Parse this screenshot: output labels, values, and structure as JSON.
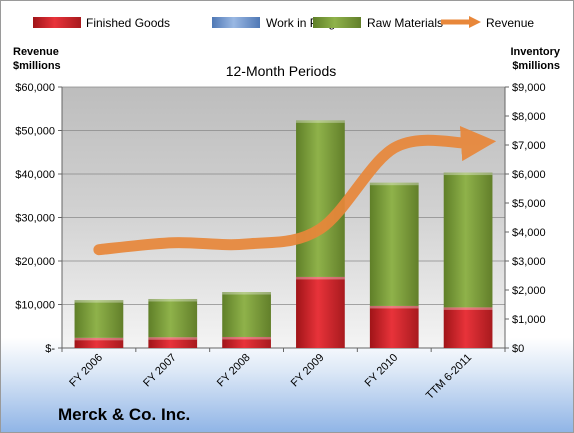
{
  "chart_data": {
    "type": "bar",
    "stacked": true,
    "subtitle": "12-Month Periods",
    "company": "Merck & Co. Inc.",
    "categories": [
      "FY 2006",
      "FY 2007",
      "FY 2008",
      "FY 2009",
      "FY 2010",
      "TTM 6-2011"
    ],
    "left_axis": {
      "title_line1": "Revenue",
      "title_line2": "$millions",
      "ylim": [
        0,
        60000
      ],
      "tick_labels": [
        "$-",
        "$10,000",
        "$20,000",
        "$30,000",
        "$40,000",
        "$50,000",
        "$60,000"
      ]
    },
    "right_axis": {
      "title_line1": "Inventory",
      "title_line2": "$millions",
      "ylim": [
        0,
        9000
      ],
      "tick_labels": [
        "$0",
        "$1,000",
        "$2,000",
        "$3,000",
        "$4,000",
        "$5,000",
        "$6,000",
        "$7,000",
        "$8,000",
        "$9,000"
      ]
    },
    "series": [
      {
        "name": "Finished Goods",
        "axis": "right",
        "kind": "bar",
        "color": "#d01f26",
        "values": [
          350,
          370,
          380,
          2450,
          1450,
          1400
        ]
      },
      {
        "name": "Work in Progress",
        "axis": "right",
        "kind": "bar",
        "color": "#6f95cc",
        "values": [
          0,
          0,
          0,
          0,
          0,
          0
        ]
      },
      {
        "name": "Raw Materials",
        "axis": "right",
        "kind": "bar",
        "color": "#7a9a3a",
        "values": [
          1300,
          1320,
          1550,
          5400,
          4250,
          4650
        ]
      },
      {
        "name": "Revenue",
        "axis": "left",
        "kind": "line",
        "color": "#e8873a",
        "values": [
          22600,
          24200,
          23900,
          27400,
          46000,
          47100
        ]
      }
    ],
    "grid": true,
    "legend_position": "top"
  }
}
